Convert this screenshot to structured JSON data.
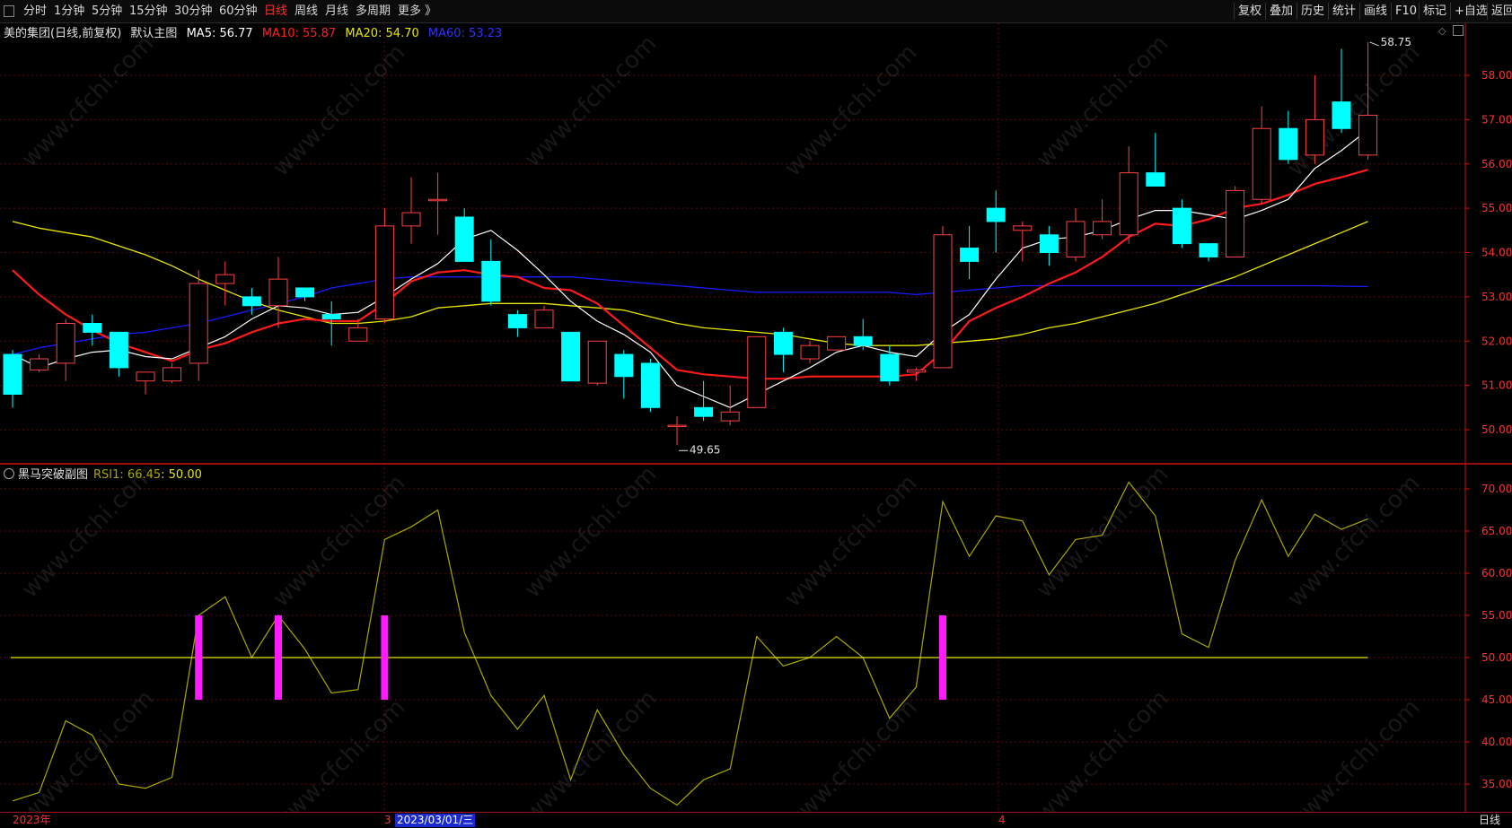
{
  "toolbar": {
    "periods": [
      "分时",
      "1分钟",
      "5分钟",
      "15分钟",
      "30分钟",
      "60分钟",
      "日线",
      "周线",
      "月线",
      "多周期",
      "更多 》"
    ],
    "active_period": "日线",
    "right_buttons": [
      "复权",
      "叠加",
      "历史",
      "统计",
      "画线",
      "F10",
      "标记",
      "+自选",
      "返回"
    ]
  },
  "main_legend": {
    "stock": "美的集团(日线,前复权)",
    "template": "默认主图",
    "ma5": "MA5: 56.77",
    "ma10": "MA10: 55.87",
    "ma20": "MA20: 54.70",
    "ma60": "MA60: 53.23"
  },
  "sub_legend": {
    "title": "黑马突破副图",
    "rsi_label": "RSI1: 66.45",
    "level_label": ": 50.00"
  },
  "date_bar": {
    "year": "2023年",
    "march": "3",
    "cursor_date": "2023/03/01/三",
    "april": "4",
    "period": "日线"
  },
  "watermark_text": "www.cfchi.com",
  "colors": {
    "up": "#ff4040",
    "down": "#00ffff",
    "ma5": "#ffffff",
    "ma10": "#ff1a1a",
    "ma20": "#e6e600",
    "ma60": "#1a1aff",
    "rsi": "#a8a800",
    "signal": "#ff1aff",
    "axis": "#cc1010"
  },
  "chart_data": [
    {
      "type": "candlestick",
      "y_ticks": [
        "58.00",
        "57.00",
        "56.00",
        "55.00",
        "54.00",
        "53.00",
        "52.00",
        "51.00",
        "50.00"
      ],
      "ylim": [
        49.5,
        59.0
      ],
      "annotations": [
        {
          "label": "58.75",
          "value": 58.75,
          "index": 51
        },
        {
          "label": "49.65",
          "value": 49.65,
          "index": 25
        }
      ],
      "candles": [
        {
          "o": 51.7,
          "h": 51.8,
          "l": 50.5,
          "c": 50.8
        },
        {
          "o": 51.35,
          "h": 51.7,
          "l": 51.3,
          "c": 51.6
        },
        {
          "o": 51.5,
          "h": 52.5,
          "l": 51.1,
          "c": 52.4
        },
        {
          "o": 52.4,
          "h": 52.6,
          "l": 51.9,
          "c": 52.2
        },
        {
          "o": 52.2,
          "h": 52.2,
          "l": 51.2,
          "c": 51.4
        },
        {
          "o": 51.1,
          "h": 51.3,
          "l": 50.8,
          "c": 51.3
        },
        {
          "o": 51.1,
          "h": 51.5,
          "l": 51.05,
          "c": 51.4
        },
        {
          "o": 51.5,
          "h": 53.6,
          "l": 51.1,
          "c": 53.3
        },
        {
          "o": 53.3,
          "h": 53.8,
          "l": 52.8,
          "c": 53.5
        },
        {
          "o": 53.0,
          "h": 53.2,
          "l": 52.6,
          "c": 52.8
        },
        {
          "o": 52.8,
          "h": 53.9,
          "l": 52.3,
          "c": 53.4
        },
        {
          "o": 53.2,
          "h": 53.2,
          "l": 52.9,
          "c": 53.0
        },
        {
          "o": 52.6,
          "h": 52.9,
          "l": 51.9,
          "c": 52.5
        },
        {
          "o": 52.0,
          "h": 52.5,
          "l": 52.0,
          "c": 52.3
        },
        {
          "o": 52.5,
          "h": 55.0,
          "l": 52.4,
          "c": 54.6
        },
        {
          "o": 54.6,
          "h": 55.7,
          "l": 54.2,
          "c": 54.9
        },
        {
          "o": 55.2,
          "h": 55.8,
          "l": 54.4,
          "c": 55.2
        },
        {
          "o": 54.8,
          "h": 55.0,
          "l": 53.8,
          "c": 53.8
        },
        {
          "o": 53.8,
          "h": 54.3,
          "l": 52.8,
          "c": 52.9
        },
        {
          "o": 52.6,
          "h": 52.7,
          "l": 52.1,
          "c": 52.3
        },
        {
          "o": 52.3,
          "h": 52.8,
          "l": 52.3,
          "c": 52.7
        },
        {
          "o": 52.2,
          "h": 52.2,
          "l": 51.1,
          "c": 51.1
        },
        {
          "o": 51.05,
          "h": 52.0,
          "l": 51.0,
          "c": 52.0
        },
        {
          "o": 51.7,
          "h": 51.8,
          "l": 50.7,
          "c": 51.2
        },
        {
          "o": 51.5,
          "h": 51.6,
          "l": 50.4,
          "c": 50.5
        },
        {
          "o": 50.1,
          "h": 50.3,
          "l": 49.65,
          "c": 50.1
        },
        {
          "o": 50.5,
          "h": 51.1,
          "l": 50.2,
          "c": 50.3
        },
        {
          "o": 50.2,
          "h": 51.0,
          "l": 50.1,
          "c": 50.4
        },
        {
          "o": 50.5,
          "h": 52.1,
          "l": 50.5,
          "c": 52.1
        },
        {
          "o": 52.2,
          "h": 52.3,
          "l": 51.3,
          "c": 51.7
        },
        {
          "o": 51.6,
          "h": 52.0,
          "l": 51.5,
          "c": 51.9
        },
        {
          "o": 51.8,
          "h": 52.1,
          "l": 51.8,
          "c": 52.1
        },
        {
          "o": 52.1,
          "h": 52.5,
          "l": 51.8,
          "c": 51.9
        },
        {
          "o": 51.7,
          "h": 51.9,
          "l": 51.0,
          "c": 51.1
        },
        {
          "o": 51.3,
          "h": 51.4,
          "l": 51.1,
          "c": 51.35
        },
        {
          "o": 51.4,
          "h": 54.6,
          "l": 51.4,
          "c": 54.4
        },
        {
          "o": 54.1,
          "h": 54.6,
          "l": 53.4,
          "c": 53.8
        },
        {
          "o": 55.0,
          "h": 55.4,
          "l": 54.0,
          "c": 54.7
        },
        {
          "o": 54.5,
          "h": 54.7,
          "l": 53.8,
          "c": 54.6
        },
        {
          "o": 54.4,
          "h": 54.6,
          "l": 53.7,
          "c": 54.0
        },
        {
          "o": 53.9,
          "h": 55.0,
          "l": 53.8,
          "c": 54.7
        },
        {
          "o": 54.4,
          "h": 55.2,
          "l": 54.3,
          "c": 54.7
        },
        {
          "o": 54.4,
          "h": 56.4,
          "l": 54.2,
          "c": 55.8
        },
        {
          "o": 55.8,
          "h": 56.7,
          "l": 55.5,
          "c": 55.5
        },
        {
          "o": 55.0,
          "h": 55.2,
          "l": 54.1,
          "c": 54.2
        },
        {
          "o": 54.2,
          "h": 54.2,
          "l": 53.8,
          "c": 53.9
        },
        {
          "o": 53.9,
          "h": 55.5,
          "l": 53.9,
          "c": 55.4
        },
        {
          "o": 55.2,
          "h": 57.3,
          "l": 55.1,
          "c": 56.8
        },
        {
          "o": 56.8,
          "h": 57.2,
          "l": 56.0,
          "c": 56.1
        },
        {
          "o": 56.2,
          "h": 58.0,
          "l": 56.0,
          "c": 57.0
        },
        {
          "o": 57.4,
          "h": 58.6,
          "l": 56.7,
          "c": 56.8
        },
        {
          "o": 56.2,
          "h": 58.75,
          "l": 56.1,
          "c": 57.1
        }
      ],
      "ma5": [
        51.7,
        51.4,
        51.6,
        51.75,
        51.8,
        51.65,
        51.6,
        51.85,
        52.1,
        52.5,
        52.8,
        52.75,
        52.6,
        52.65,
        53.0,
        53.4,
        53.75,
        54.3,
        54.5,
        54.05,
        53.5,
        52.9,
        52.45,
        52.15,
        51.75,
        51.0,
        50.75,
        50.5,
        50.8,
        51.1,
        51.4,
        51.75,
        51.9,
        51.75,
        51.65,
        52.2,
        52.6,
        53.4,
        54.1,
        54.3,
        54.35,
        54.5,
        54.75,
        54.95,
        54.95,
        54.85,
        54.75,
        54.95,
        55.2,
        55.9,
        56.3,
        56.77
      ],
      "ma10": [
        53.6,
        53.05,
        52.6,
        52.25,
        51.95,
        51.75,
        51.55,
        51.8,
        51.95,
        52.2,
        52.4,
        52.5,
        52.45,
        52.45,
        52.85,
        53.35,
        53.55,
        53.6,
        53.5,
        53.45,
        53.2,
        53.15,
        52.85,
        52.35,
        51.85,
        51.35,
        51.25,
        51.2,
        51.15,
        51.15,
        51.2,
        51.2,
        51.2,
        51.2,
        51.25,
        51.75,
        52.45,
        52.75,
        53.0,
        53.3,
        53.55,
        53.9,
        54.35,
        54.65,
        54.6,
        54.75,
        55.0,
        55.1,
        55.3,
        55.55,
        55.7,
        55.87
      ],
      "ma20": [
        54.7,
        54.55,
        54.45,
        54.35,
        54.15,
        53.95,
        53.7,
        53.4,
        53.15,
        52.9,
        52.7,
        52.55,
        52.4,
        52.4,
        52.45,
        52.55,
        52.75,
        52.8,
        52.85,
        52.85,
        52.85,
        52.8,
        52.75,
        52.7,
        52.55,
        52.4,
        52.3,
        52.25,
        52.2,
        52.15,
        52.05,
        51.95,
        51.9,
        51.9,
        51.9,
        51.95,
        52.0,
        52.05,
        52.15,
        52.3,
        52.4,
        52.55,
        52.7,
        52.85,
        53.05,
        53.25,
        53.45,
        53.7,
        53.95,
        54.2,
        54.45,
        54.7
      ],
      "ma60": [
        51.7,
        51.85,
        51.95,
        52.05,
        52.15,
        52.2,
        52.3,
        52.4,
        52.55,
        52.7,
        52.85,
        53.0,
        53.2,
        53.3,
        53.4,
        53.45,
        53.45,
        53.45,
        53.45,
        53.45,
        53.45,
        53.45,
        53.4,
        53.35,
        53.3,
        53.25,
        53.2,
        53.15,
        53.1,
        53.1,
        53.1,
        53.1,
        53.1,
        53.1,
        53.05,
        53.1,
        53.15,
        53.2,
        53.25,
        53.25,
        53.25,
        53.25,
        53.25,
        53.25,
        53.25,
        53.25,
        53.25,
        53.25,
        53.25,
        53.25,
        53.24,
        53.23
      ]
    },
    {
      "type": "line",
      "title": "黑马突破副图",
      "y_ticks": [
        "70.00",
        "65.00",
        "60.00",
        "55.00",
        "50.00",
        "45.00",
        "40.00",
        "35.00"
      ],
      "ylim": [
        32.0,
        72.5
      ],
      "series": [
        {
          "name": "RSI1",
          "values": [
            33.0,
            34.0,
            42.5,
            40.8,
            35.0,
            34.5,
            35.8,
            55.0,
            57.2,
            50.0,
            55.0,
            51.0,
            45.8,
            46.2,
            64.0,
            65.5,
            67.5,
            53.0,
            45.5,
            41.5,
            45.5,
            35.5,
            43.8,
            38.5,
            34.5,
            32.5,
            35.5,
            36.8,
            52.5,
            49.0,
            50.0,
            52.5,
            50.0,
            42.8,
            46.5,
            68.5,
            62.0,
            66.8,
            66.2,
            59.8,
            64.0,
            64.5,
            70.8,
            66.8,
            52.8,
            51.2,
            61.5,
            68.7,
            62.0,
            67.0,
            65.2,
            66.45
          ]
        },
        {
          "name": "level",
          "values": [
            50.0
          ]
        }
      ],
      "signals": [
        {
          "index": 7,
          "low": 45.0,
          "high": 55.0
        },
        {
          "index": 10,
          "low": 45.0,
          "high": 55.0
        },
        {
          "index": 14,
          "low": 45.0,
          "high": 55.0
        },
        {
          "index": 35,
          "low": 45.0,
          "high": 55.0
        }
      ]
    }
  ]
}
